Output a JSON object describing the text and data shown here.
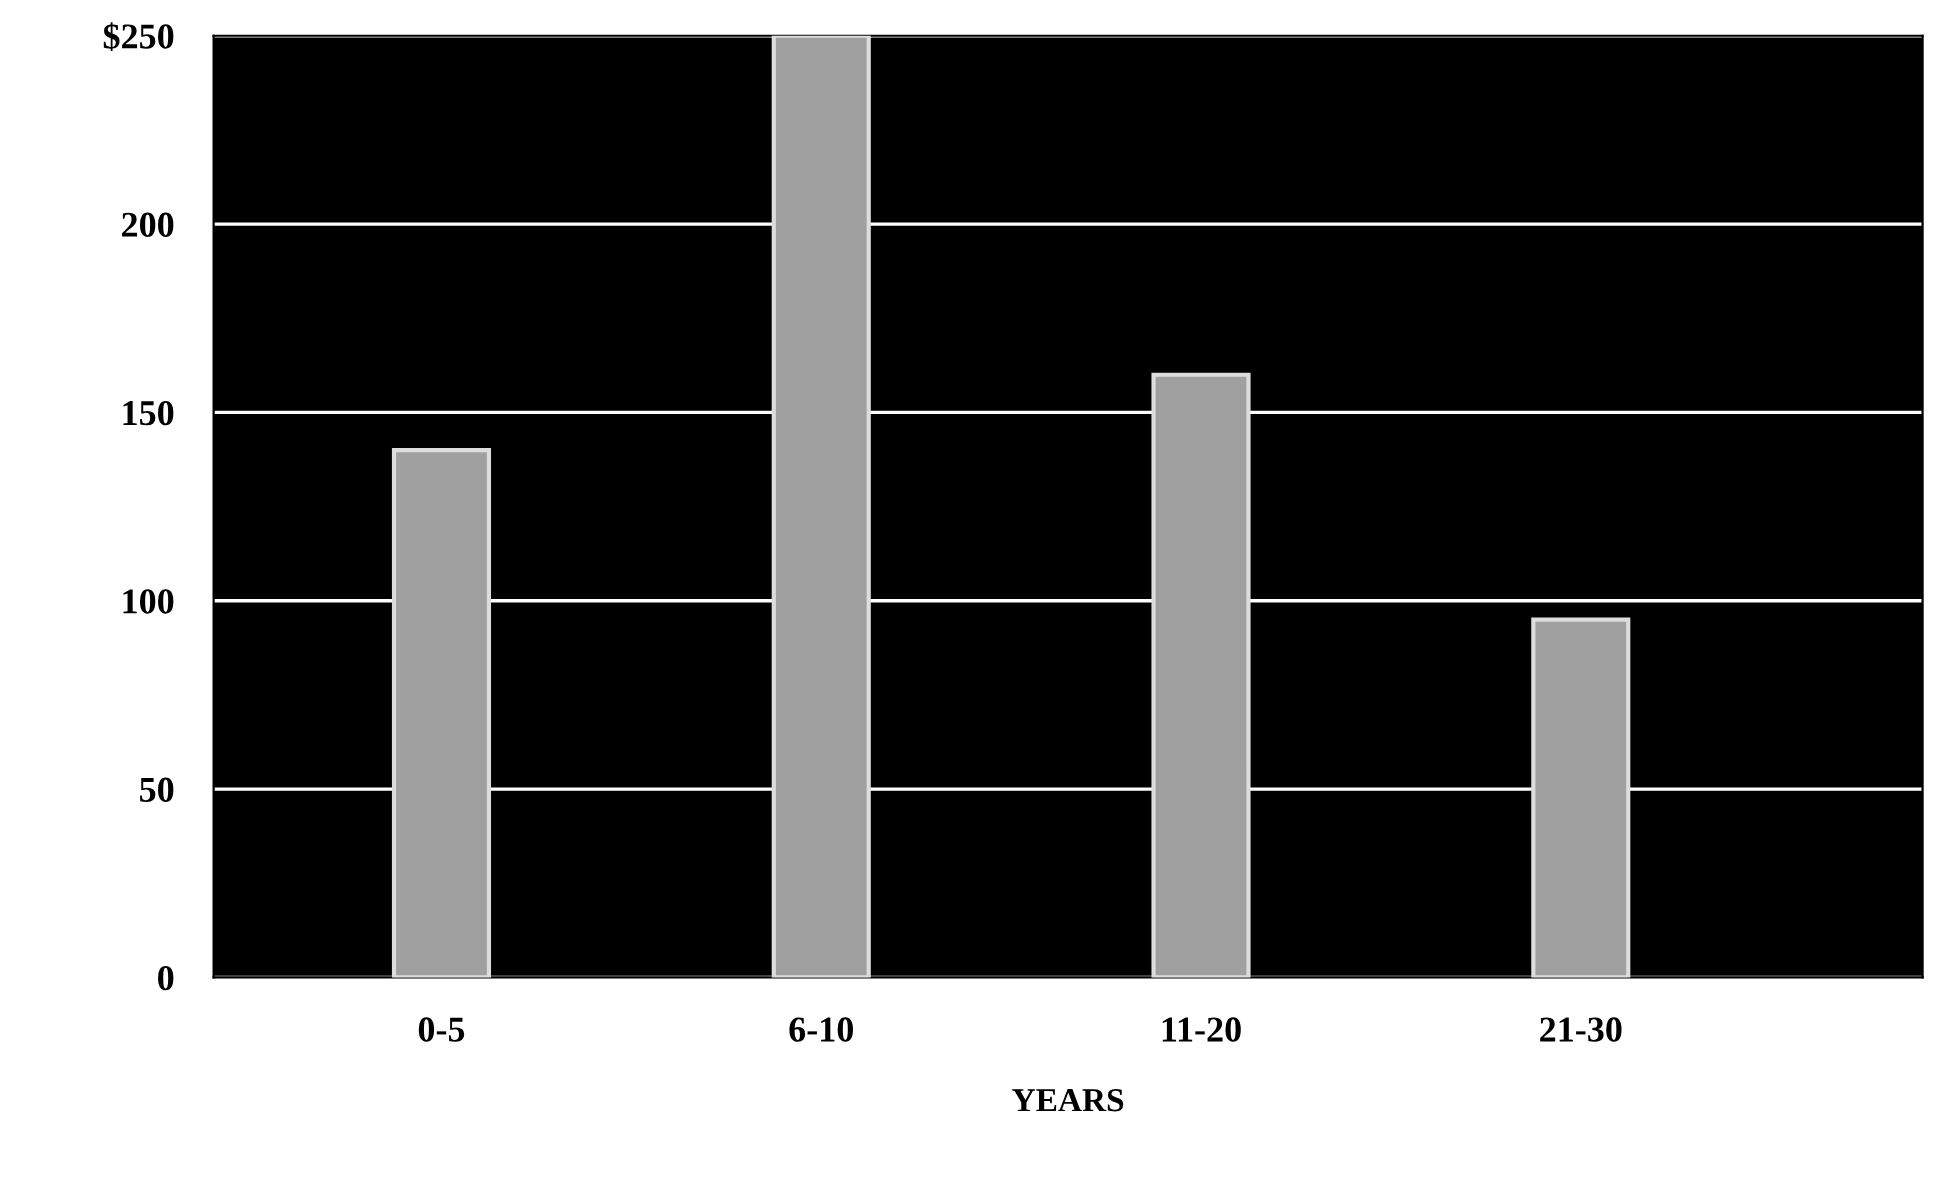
{
  "chart_data": {
    "type": "bar",
    "xlabel": "YEARS",
    "categories": [
      "0-5",
      "6-10",
      "11-20",
      "21-30"
    ],
    "values": [
      140,
      250,
      160,
      95
    ],
    "color": "#a0a0a0",
    "ylim": [
      0,
      250
    ],
    "yticks": [
      0,
      50,
      100,
      150,
      200,
      {
        "value": 250,
        "label": "$250"
      }
    ],
    "grid": "y"
  }
}
